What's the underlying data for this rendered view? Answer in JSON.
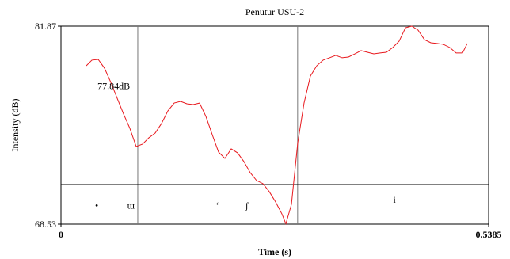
{
  "chart_data": {
    "type": "line",
    "title": "Penutur USU-2",
    "x_label": "Time (s)",
    "y_label": "Intensity (dB)",
    "xlim": [
      0,
      0.5385
    ],
    "ylim": [
      68.53,
      81.87
    ],
    "xticks": [
      0,
      0.5385
    ],
    "yticks": [
      68.53,
      81.87
    ],
    "series": [
      {
        "name": "Intensity",
        "color": "#e8191e",
        "x": [
          0.0319,
          0.0389,
          0.0469,
          0.0548,
          0.0628,
          0.0708,
          0.0788,
          0.0867,
          0.0947,
          0.1027,
          0.1107,
          0.1187,
          0.1266,
          0.1346,
          0.1426,
          0.1506,
          0.1585,
          0.1665,
          0.1745,
          0.1825,
          0.1905,
          0.1984,
          0.2064,
          0.2144,
          0.2224,
          0.2303,
          0.2383,
          0.2463,
          0.2543,
          0.2623,
          0.2702,
          0.2782,
          0.2832,
          0.2902,
          0.2982,
          0.3061,
          0.3141,
          0.3221,
          0.3301,
          0.3381,
          0.346,
          0.354,
          0.362,
          0.37,
          0.3779,
          0.3859,
          0.3939,
          0.4019,
          0.4098,
          0.4178,
          0.4258,
          0.4338,
          0.4418,
          0.4497,
          0.4577,
          0.4657,
          0.4737,
          0.4816,
          0.4896,
          0.4976,
          0.5056,
          0.5116
        ],
        "values": [
          79.2,
          79.58,
          79.63,
          79.04,
          78.08,
          77.01,
          75.95,
          74.99,
          73.76,
          73.92,
          74.35,
          74.67,
          75.31,
          76.16,
          76.69,
          76.8,
          76.64,
          76.59,
          76.69,
          75.79,
          74.56,
          73.39,
          72.96,
          73.6,
          73.33,
          72.75,
          72.0,
          71.47,
          71.26,
          70.72,
          70.03,
          69.22,
          68.55,
          69.86,
          74.03,
          76.69,
          78.51,
          79.2,
          79.58,
          79.74,
          79.9,
          79.74,
          79.79,
          80.0,
          80.22,
          80.11,
          80.0,
          80.06,
          80.11,
          80.43,
          80.86,
          81.76,
          81.87,
          81.6,
          80.96,
          80.75,
          80.7,
          80.64,
          80.43,
          80.06,
          80.06,
          80.7
        ]
      }
    ],
    "boundaries": [
      0.0967,
      0.298
    ],
    "tier_line": 71.2,
    "annotation": {
      "text": "77.84dB",
      "x": 0.0665,
      "y": 77.84
    },
    "segments": [
      {
        "text": "•",
        "x": 0.045,
        "y": 69.9
      },
      {
        "text": "ɯ",
        "x": 0.088,
        "y": 69.9
      },
      {
        "text": "ʻ",
        "x": 0.197,
        "y": 69.9
      },
      {
        "text": "ʃ",
        "x": 0.234,
        "y": 69.9
      },
      {
        "text": "i",
        "x": 0.42,
        "y": 70.3
      }
    ]
  }
}
